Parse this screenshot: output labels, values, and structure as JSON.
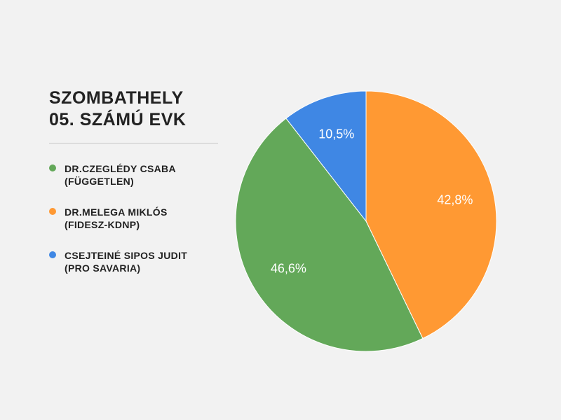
{
  "title": {
    "line1": "SZOMBATHELY",
    "line2": "05. SZÁMÚ EVK"
  },
  "legend": [
    {
      "line1": "DR.CZEGLÉDY CSABA",
      "line2": "(FÜGGETLEN)",
      "color": "#63a859"
    },
    {
      "line1": "DR.MELEGA MIKLÓS",
      "line2": "(FIDESZ-KDNP)",
      "color": "#ff9933"
    },
    {
      "line1": "CSEJTEINÉ SIPOS JUDIT",
      "line2": "(PRO SAVARIA)",
      "color": "#3f87e4"
    }
  ],
  "chart_data": {
    "type": "pie",
    "title": "SZOMBATHELY 05. SZÁMÚ EVK",
    "slices": [
      {
        "name": "DR.CZEGLÉDY CSABA (FÜGGETLEN)",
        "value": 46.6,
        "label": "46,6%",
        "color": "#63a859"
      },
      {
        "name": "DR.MELEGA MIKLÓS (FIDESZ-KDNP)",
        "value": 42.8,
        "label": "42,8%",
        "color": "#ff9933"
      },
      {
        "name": "CSEJTEINÉ SIPOS JUDIT (PRO SAVARIA)",
        "value": 10.5,
        "label": "10,5%",
        "color": "#3f87e4"
      }
    ],
    "legend_position": "left"
  }
}
